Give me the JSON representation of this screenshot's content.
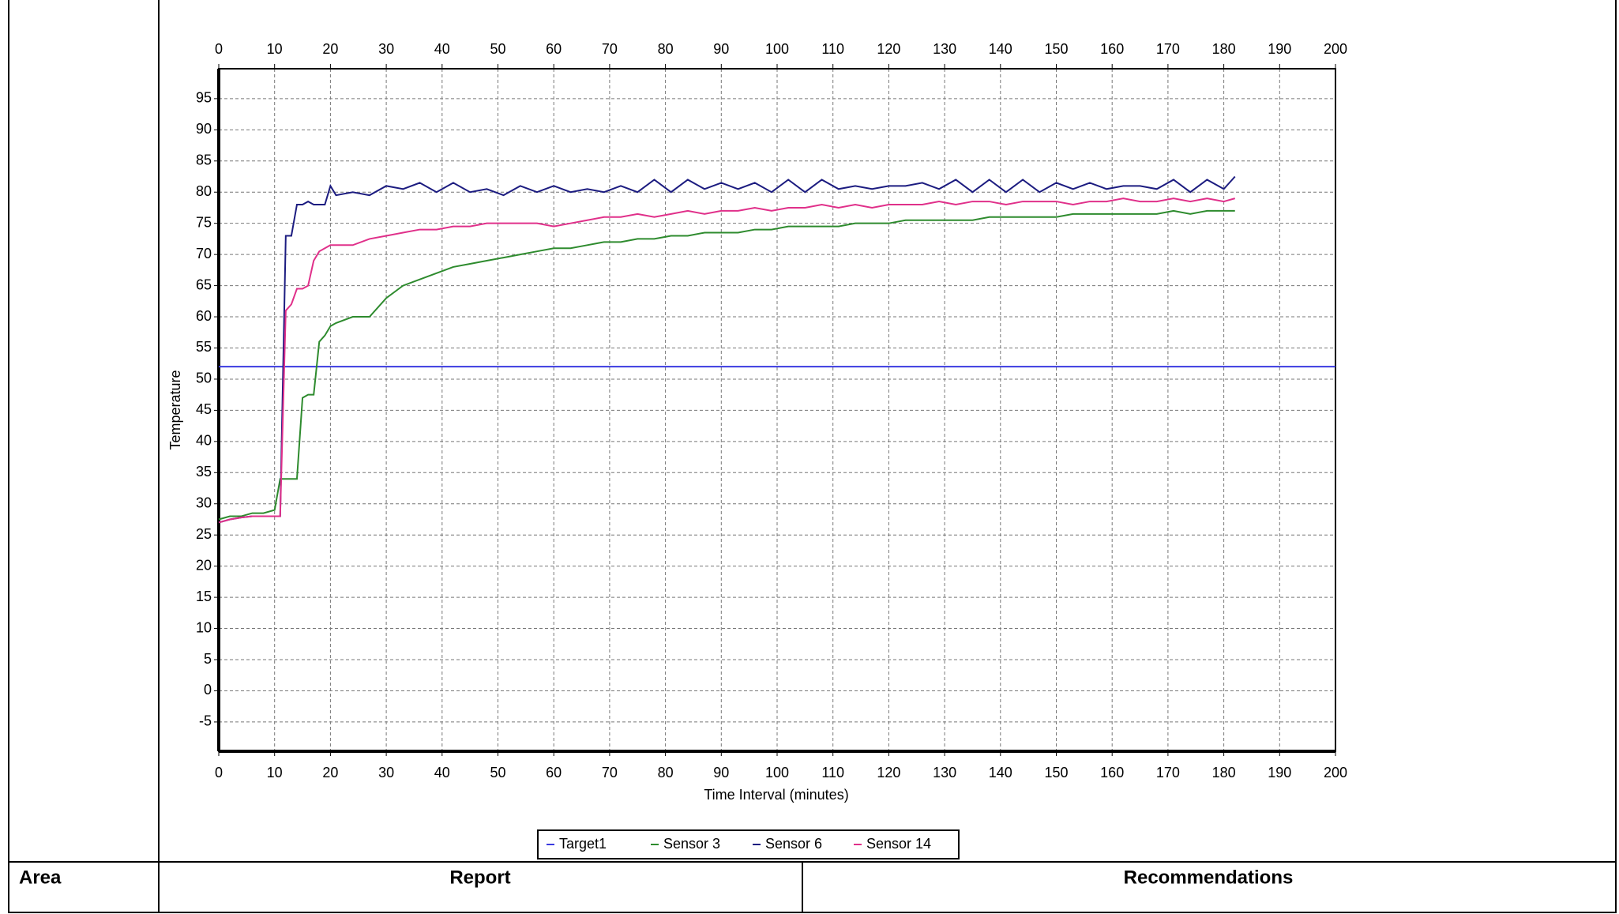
{
  "chart_data": {
    "type": "line",
    "xlabel": "Time Interval (minutes)",
    "ylabel": "Temperature",
    "xlim": [
      0,
      200
    ],
    "ylim": [
      -9.7,
      99.8
    ],
    "xticks": [
      0,
      10,
      20,
      30,
      40,
      50,
      60,
      70,
      80,
      90,
      100,
      110,
      120,
      130,
      140,
      150,
      160,
      170,
      180,
      190,
      200
    ],
    "yticks": [
      -5,
      0,
      5,
      10,
      15,
      20,
      25,
      30,
      35,
      40,
      45,
      50,
      55,
      60,
      65,
      70,
      75,
      80,
      85,
      90,
      95
    ],
    "grid": true,
    "legend": "bottom",
    "x": [
      0,
      2,
      4,
      6,
      8,
      10,
      11,
      12,
      13,
      14,
      15,
      16,
      17,
      18,
      19,
      20,
      21,
      24,
      27,
      30,
      33,
      36,
      39,
      42,
      45,
      48,
      51,
      54,
      57,
      60,
      63,
      66,
      69,
      72,
      75,
      78,
      81,
      84,
      87,
      90,
      93,
      96,
      99,
      102,
      105,
      108,
      111,
      114,
      117,
      120,
      123,
      126,
      129,
      132,
      135,
      138,
      141,
      144,
      147,
      150,
      153,
      156,
      159,
      162,
      165,
      168,
      171,
      174,
      177,
      180,
      182
    ],
    "series": [
      {
        "name": "Target1",
        "color": "#3a3ae0",
        "x": [
          0,
          200
        ],
        "values": [
          52,
          52
        ]
      },
      {
        "name": "Sensor 3",
        "color": "#2e8b2e",
        "values": [
          27.5,
          28,
          28,
          28.5,
          28.5,
          29,
          34,
          34,
          34,
          34,
          47,
          47.5,
          47.5,
          56,
          57,
          58.5,
          59,
          60,
          60,
          63,
          65,
          66,
          67,
          68,
          68.5,
          69,
          69.5,
          70,
          70.5,
          71,
          71,
          71.5,
          72,
          72,
          72.5,
          72.5,
          73,
          73,
          73.5,
          73.5,
          73.5,
          74,
          74,
          74.5,
          74.5,
          74.5,
          74.5,
          75,
          75,
          75,
          75.5,
          75.5,
          75.5,
          75.5,
          75.5,
          76,
          76,
          76,
          76,
          76,
          76.5,
          76.5,
          76.5,
          76.5,
          76.5,
          76.5,
          77,
          76.5,
          77,
          77,
          77
        ]
      },
      {
        "name": "Sensor 6",
        "color": "#1c1c80",
        "values": [
          27,
          27.5,
          27.8,
          28,
          28,
          28,
          28,
          73,
          73,
          78,
          78,
          78.5,
          78,
          78,
          78,
          81,
          79.5,
          80,
          79.5,
          81,
          80.5,
          81.5,
          80,
          81.5,
          80,
          80.5,
          79.5,
          81,
          80,
          81,
          80,
          80.5,
          80,
          81,
          80,
          82,
          80,
          82,
          80.5,
          81.5,
          80.5,
          81.5,
          80,
          82,
          80,
          82,
          80.5,
          81,
          80.5,
          81,
          81,
          81.5,
          80.5,
          82,
          80,
          82,
          80,
          82,
          80,
          81.5,
          80.5,
          81.5,
          80.5,
          81,
          81,
          80.5,
          82,
          80,
          82,
          80.5,
          82.5
        ]
      },
      {
        "name": "Sensor 14",
        "color": "#e0308a",
        "values": [
          27,
          27.5,
          27.8,
          28,
          28,
          28,
          28,
          61,
          62,
          64.5,
          64.5,
          65,
          69,
          70.5,
          71,
          71.5,
          71.5,
          71.5,
          72.5,
          73,
          73.5,
          74,
          74,
          74.5,
          74.5,
          75,
          75,
          75,
          75,
          74.5,
          75,
          75.5,
          76,
          76,
          76.5,
          76,
          76.5,
          77,
          76.5,
          77,
          77,
          77.5,
          77,
          77.5,
          77.5,
          78,
          77.5,
          78,
          77.5,
          78,
          78,
          78,
          78.5,
          78,
          78.5,
          78.5,
          78,
          78.5,
          78.5,
          78.5,
          78,
          78.5,
          78.5,
          79,
          78.5,
          78.5,
          79,
          78.5,
          79,
          78.5,
          79
        ]
      }
    ]
  },
  "table": {
    "headers": [
      "Area",
      "Report",
      "Recommendations"
    ]
  }
}
